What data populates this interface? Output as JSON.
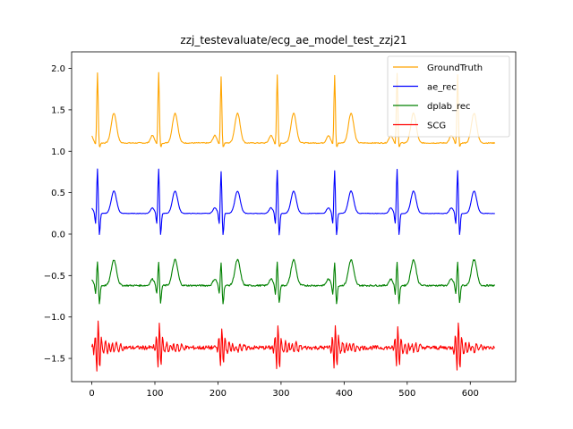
{
  "chart_data": {
    "type": "line",
    "title": "zzj_testevaluate/ecg_ae_model_test_zzj21",
    "xlabel": "",
    "ylabel": "",
    "xlim": [
      -32,
      672
    ],
    "ylim": [
      -1.78,
      2.2
    ],
    "x_ticks": [
      0,
      100,
      200,
      300,
      400,
      500,
      600
    ],
    "y_ticks": [
      -1.5,
      -1.0,
      -0.5,
      0.0,
      0.5,
      1.0,
      1.5,
      2.0
    ],
    "legend_position": "top-right",
    "grid": false,
    "n_points": 640,
    "beats": [
      {
        "x": 9,
        "peak": 1.98,
        "scg": 1.1
      },
      {
        "x": 106,
        "peak": 1.98,
        "scg": 1.0
      },
      {
        "x": 205,
        "peak": 1.93,
        "scg": 0.9
      },
      {
        "x": 294,
        "peak": 1.95,
        "scg": 1.0
      },
      {
        "x": 385,
        "peak": 1.95,
        "scg": 0.95
      },
      {
        "x": 484,
        "peak": 1.97,
        "scg": 0.9
      },
      {
        "x": 580,
        "peak": 1.95,
        "scg": 1.05
      }
    ],
    "series": [
      {
        "name": "GroundTruth",
        "color": "#FFA500",
        "baseline": 1.1,
        "peak_height": 0.85,
        "t_height": 0.36,
        "dip": 0.06
      },
      {
        "name": "ae_rec",
        "color": "#0000FF",
        "baseline": 0.25,
        "peak_height": 0.55,
        "t_height": 0.27,
        "dip": 0.27
      },
      {
        "name": "dplab_rec",
        "color": "#008000",
        "baseline": -0.62,
        "peak_height": 0.3,
        "t_height": 0.31,
        "dip": 0.22
      },
      {
        "name": "SCG",
        "color": "#FF0000",
        "baseline": -1.37,
        "peak_height": 0.26,
        "t_height": 0.0,
        "dip": 0.2
      }
    ]
  }
}
